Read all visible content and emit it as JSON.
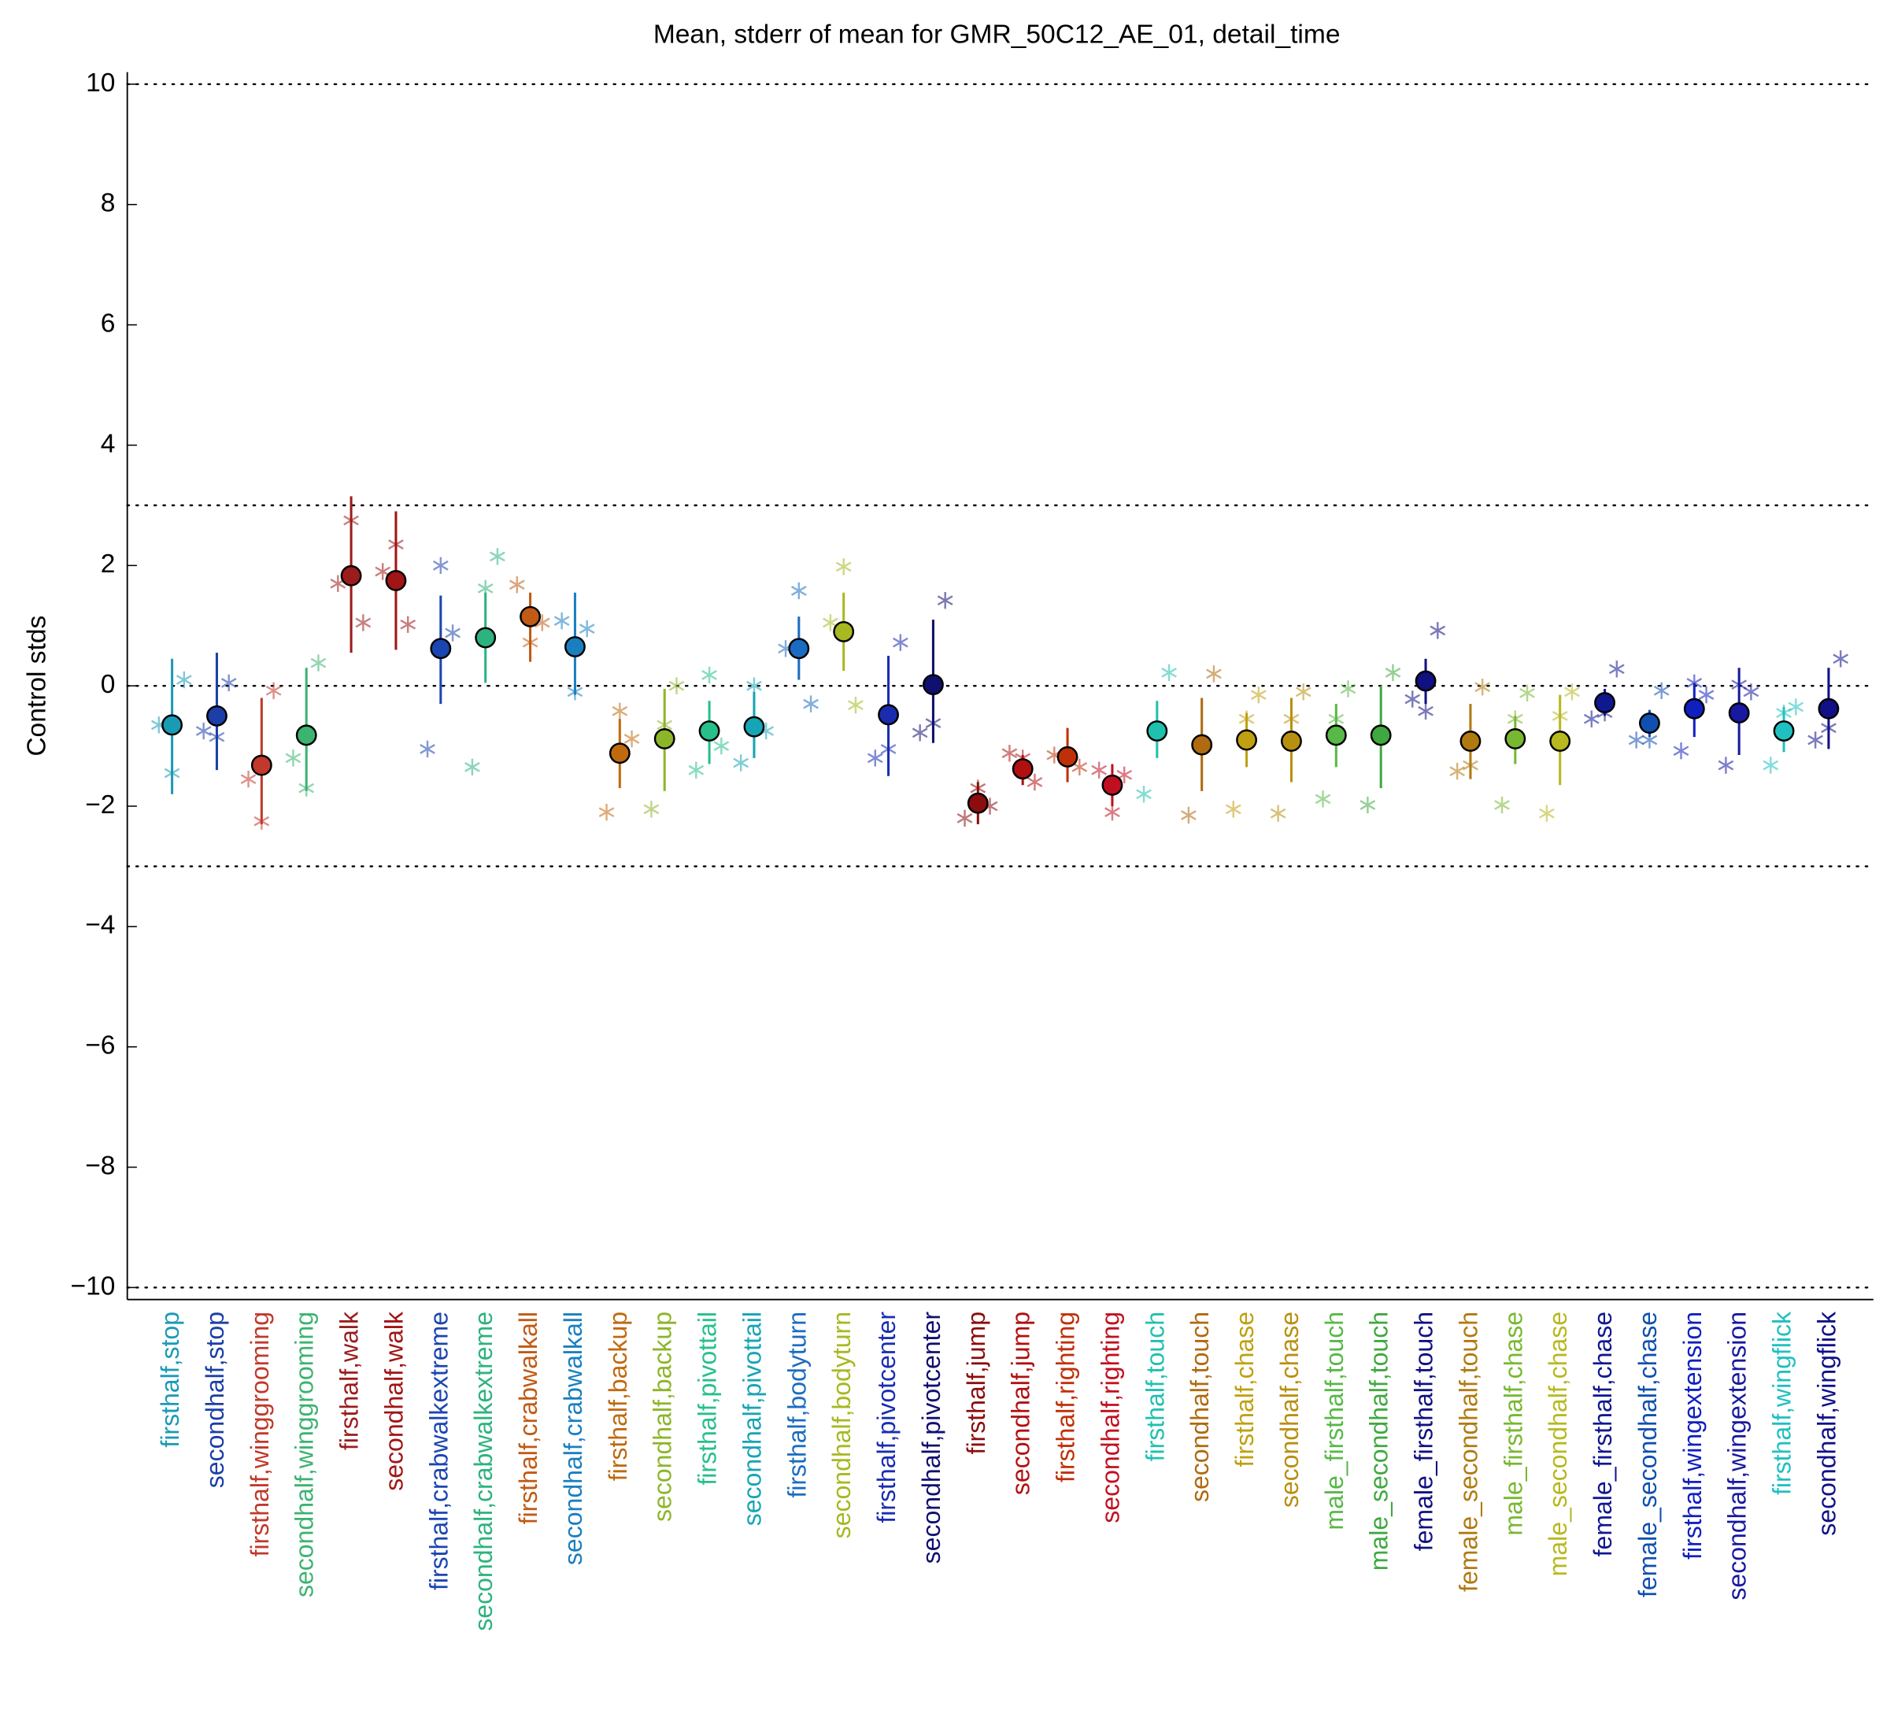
{
  "chart_data": {
    "type": "errorbar",
    "title": "Mean, stderr of mean for GMR_50C12_AE_01, detail_time",
    "ylabel": "Control stds",
    "ylim": [
      -10.2,
      10.2
    ],
    "yticks": [
      {
        "value": -10,
        "label": "−10"
      },
      {
        "value": -8,
        "label": "−8"
      },
      {
        "value": -6,
        "label": "−6"
      },
      {
        "value": -4,
        "label": "−4"
      },
      {
        "value": -2,
        "label": "−2"
      },
      0,
      2,
      4,
      6,
      8,
      10
    ],
    "reference_lines": [
      -10,
      -3,
      0,
      3,
      10
    ],
    "categories": [
      "firsthalf,stop",
      "secondhalf,stop",
      "firsthalf,winggrooming",
      "secondhalf,winggrooming",
      "firsthalf,walk",
      "secondhalf,walk",
      "firsthalf,crabwalkextreme",
      "secondhalf,crabwalkextreme",
      "firsthalf,crabwalkall",
      "secondhalf,crabwalkall",
      "firsthalf,backup",
      "secondhalf,backup",
      "firsthalf,pivottail",
      "secondhalf,pivottail",
      "firsthalf,bodyturn",
      "secondhalf,bodyturn",
      "firsthalf,pivotcenter",
      "secondhalf,pivotcenter",
      "firsthalf,jump",
      "secondhalf,jump",
      "firsthalf,righting",
      "secondhalf,righting",
      "firsthalf,touch",
      "secondhalf,touch",
      "firsthalf,chase",
      "secondhalf,chase",
      "male_firsthalf,touch",
      "male_secondhalf,touch",
      "female_firsthalf,touch",
      "female_secondhalf,touch",
      "male_firsthalf,chase",
      "male_secondhalf,chase",
      "female_firsthalf,chase",
      "female_secondhalf,chase",
      "firsthalf,wingextension",
      "secondhalf,wingextension",
      "firsthalf,wingflick",
      "secondhalf,wingflick"
    ],
    "colors": [
      "#1a9bb5",
      "#1c3ea8",
      "#c0392b",
      "#3cb371",
      "#9b1c1c",
      "#a01515",
      "#1b45b0",
      "#2db37d",
      "#c05a14",
      "#1a7fc0",
      "#c06a10",
      "#8db52a",
      "#28c08a",
      "#16a5b5",
      "#1b6cc0",
      "#a8b820",
      "#1a2db0",
      "#101070",
      "#8b0d0d",
      "#b01010",
      "#c03008",
      "#c01020",
      "#20c0b0",
      "#b06a10",
      "#c0a010",
      "#b89010",
      "#58b848",
      "#40a840",
      "#101080",
      "#b07a10",
      "#78b830",
      "#b8b820",
      "#101890",
      "#1050b0",
      "#1020c0",
      "#1818a0",
      "#20c0c0",
      "#101088"
    ],
    "values": [
      -0.65,
      -0.5,
      -1.32,
      -0.82,
      1.83,
      1.75,
      0.62,
      0.8,
      1.15,
      0.65,
      -1.12,
      -0.88,
      -0.75,
      -0.68,
      0.62,
      0.9,
      -0.48,
      0.02,
      -1.95,
      -1.38,
      -1.18,
      -1.65,
      -0.75,
      -0.98,
      -0.9,
      -0.92,
      -0.82,
      -0.82,
      0.08,
      -0.92,
      -0.88,
      -0.92,
      -0.28,
      -0.62,
      -0.38,
      -0.45,
      -0.75,
      -0.38
    ],
    "err_high": [
      0.45,
      0.55,
      -0.2,
      0.3,
      3.15,
      2.9,
      1.5,
      1.55,
      1.55,
      1.55,
      -0.55,
      -0.05,
      -0.25,
      -0.1,
      1.15,
      1.55,
      0.5,
      1.1,
      -1.6,
      -1.15,
      -0.7,
      -1.3,
      -0.25,
      -0.2,
      -0.45,
      -0.2,
      -0.3,
      0.0,
      0.45,
      -0.3,
      -0.5,
      -0.15,
      -0.05,
      -0.4,
      0.05,
      0.3,
      -0.35,
      0.3
    ],
    "err_low": [
      -1.8,
      -1.4,
      -2.3,
      -1.75,
      0.55,
      0.6,
      -0.3,
      0.05,
      0.4,
      -0.15,
      -1.7,
      -1.75,
      -1.3,
      -1.2,
      0.1,
      0.25,
      -1.5,
      -0.95,
      -2.3,
      -1.65,
      -1.6,
      -2.0,
      -1.2,
      -1.75,
      -1.35,
      -1.6,
      -1.35,
      -1.7,
      -0.3,
      -1.55,
      -1.3,
      -1.65,
      -0.5,
      -0.85,
      -0.85,
      -1.15,
      -1.1,
      -1.05
    ],
    "star_values": [
      [
        -0.65,
        -1.45,
        0.1
      ],
      [
        -0.75,
        -0.85,
        0.05
      ],
      [
        -1.55,
        -2.25,
        -0.08
      ],
      [
        -1.2,
        -1.7,
        0.38
      ],
      [
        1.7,
        2.75,
        1.05
      ],
      [
        1.9,
        2.35,
        1.02
      ],
      [
        -1.05,
        2.0,
        0.88
      ],
      [
        -1.35,
        1.62,
        2.15
      ],
      [
        1.68,
        0.72,
        1.05
      ],
      [
        1.08,
        -0.1,
        0.95
      ],
      [
        -2.1,
        -0.42,
        -0.88
      ],
      [
        -2.05,
        -0.65,
        0.0
      ],
      [
        -1.4,
        0.18,
        -1.0
      ],
      [
        -1.28,
        0.0,
        -0.75
      ],
      [
        0.62,
        1.58,
        -0.3
      ],
      [
        1.05,
        1.98,
        -0.32
      ],
      [
        -1.2,
        -1.05,
        0.72
      ],
      [
        -0.78,
        -0.62,
        1.42
      ],
      [
        -2.2,
        -1.7,
        -2.0
      ],
      [
        -1.12,
        -1.2,
        -1.6
      ],
      [
        -1.15,
        -1.15,
        -1.35
      ],
      [
        -1.4,
        -2.1,
        -1.48
      ],
      [
        -1.8,
        -0.75,
        0.22
      ],
      [
        -2.15,
        -0.98,
        0.2
      ],
      [
        -2.05,
        -0.55,
        -0.15
      ],
      [
        -2.12,
        -0.55,
        -0.1
      ],
      [
        -1.88,
        -0.55,
        -0.05
      ],
      [
        -1.98,
        -0.82,
        0.22
      ],
      [
        -0.22,
        -0.42,
        0.92
      ],
      [
        -1.42,
        -1.32,
        -0.02
      ],
      [
        -1.98,
        -0.55,
        -0.12
      ],
      [
        -2.12,
        -0.5,
        -0.1
      ],
      [
        -0.55,
        -0.45,
        0.28
      ],
      [
        -0.9,
        -0.9,
        -0.08
      ],
      [
        -1.08,
        0.05,
        -0.15
      ],
      [
        -1.32,
        0.02,
        -0.1
      ],
      [
        -1.32,
        -0.45,
        -0.35
      ],
      [
        -0.9,
        -0.7,
        0.45
      ]
    ]
  }
}
